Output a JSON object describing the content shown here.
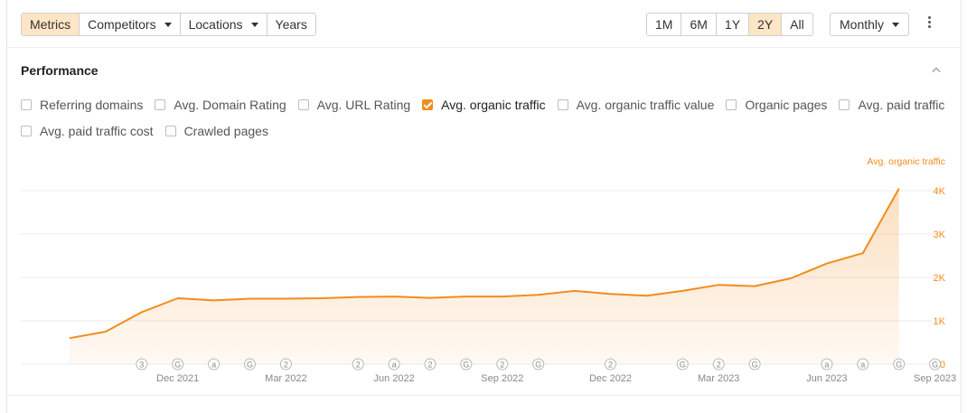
{
  "toolbar": {
    "tabs": [
      "Metrics",
      "Competitors",
      "Locations",
      "Years"
    ],
    "ranges": [
      "1M",
      "6M",
      "1Y",
      "2Y",
      "All"
    ],
    "interval": "Monthly"
  },
  "section": {
    "title": "Performance"
  },
  "metrics": [
    {
      "label": "Referring domains",
      "checked": false
    },
    {
      "label": "Avg. Domain Rating",
      "checked": false
    },
    {
      "label": "Avg. URL Rating",
      "checked": false
    },
    {
      "label": "Avg. organic traffic",
      "checked": true
    },
    {
      "label": "Avg. organic traffic value",
      "checked": false
    },
    {
      "label": "Organic pages",
      "checked": false
    },
    {
      "label": "Avg. paid traffic",
      "checked": false
    },
    {
      "label": "Avg. paid traffic cost",
      "checked": false
    },
    {
      "label": "Crawled pages",
      "checked": false
    }
  ],
  "chart_data": {
    "type": "area",
    "series": [
      {
        "name": "Avg. organic traffic",
        "color": "#f28c1c",
        "values": [
          600,
          750,
          1200,
          1520,
          1470,
          1510,
          1510,
          1520,
          1550,
          1560,
          1530,
          1560,
          1560,
          1600,
          1690,
          1620,
          1580,
          1690,
          1830,
          1800,
          1980,
          2320,
          2560,
          4050
        ]
      }
    ],
    "x": [
      "2021-09",
      "2021-10",
      "2021-11",
      "2021-12",
      "2022-01",
      "2022-02",
      "2022-03",
      "2022-04",
      "2022-05",
      "2022-06",
      "2022-07",
      "2022-08",
      "2022-09",
      "2022-10",
      "2022-11",
      "2022-12",
      "2023-01",
      "2023-02",
      "2023-03",
      "2023-04",
      "2023-05",
      "2023-06",
      "2023-07",
      "2023-08"
    ],
    "x_tick_labels": [
      "Dec 2021",
      "Mar 2022",
      "Jun 2022",
      "Sep 2022",
      "Dec 2022",
      "Mar 2023",
      "Jun 2023",
      "Sep 2023"
    ],
    "y_ticks": [
      "0",
      "1K",
      "2K",
      "3K",
      "4K"
    ],
    "ylim": [
      0,
      4000
    ],
    "grid": true,
    "markers": [
      {
        "x": "2021-11",
        "label": "3"
      },
      {
        "x": "2021-12",
        "label": "G"
      },
      {
        "x": "2022-01",
        "label": "a"
      },
      {
        "x": "2022-02",
        "label": "G"
      },
      {
        "x": "2022-03",
        "label": "2"
      },
      {
        "x": "2022-05",
        "label": "2"
      },
      {
        "x": "2022-06",
        "label": "a"
      },
      {
        "x": "2022-07",
        "label": "2"
      },
      {
        "x": "2022-08",
        "label": "G"
      },
      {
        "x": "2022-09",
        "label": "2"
      },
      {
        "x": "2022-10",
        "label": "G"
      },
      {
        "x": "2022-12",
        "label": "2"
      },
      {
        "x": "2023-02",
        "label": "G"
      },
      {
        "x": "2023-03",
        "label": "2"
      },
      {
        "x": "2023-04",
        "label": "G"
      },
      {
        "x": "2023-06",
        "label": "a"
      },
      {
        "x": "2023-07",
        "label": "a"
      },
      {
        "x": "2023-08",
        "label": "G"
      },
      {
        "x": "2023-09",
        "label": "G"
      }
    ]
  }
}
